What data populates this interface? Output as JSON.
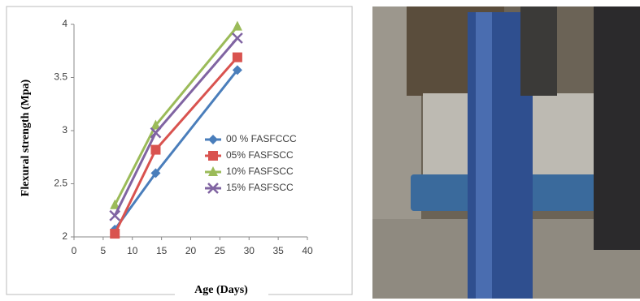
{
  "chart_data": {
    "type": "line",
    "x_label": "Age (Days)",
    "y_label": "Flexural strength (Mpa)",
    "x": [
      7,
      14,
      28
    ],
    "xlim": [
      0,
      40
    ],
    "xticks": [
      0,
      5,
      10,
      15,
      20,
      25,
      30,
      35,
      40
    ],
    "ylim": [
      2,
      4
    ],
    "yticks": [
      2,
      2.5,
      3,
      3.5,
      4
    ],
    "series": [
      {
        "name": "00 % FASFCCC",
        "color": "#4a7ebb",
        "marker": "diamond",
        "values": [
          2.07,
          2.6,
          3.57
        ]
      },
      {
        "name": "05% FASFSCC",
        "color": "#d9534f",
        "marker": "square",
        "values": [
          2.03,
          2.82,
          3.69
        ]
      },
      {
        "name": "10% FASFSCC",
        "color": "#9bbb59",
        "marker": "triangle",
        "values": [
          2.3,
          3.05,
          3.98
        ]
      },
      {
        "name": "15% FASFSCC",
        "color": "#8064a2",
        "marker": "x",
        "values": [
          2.2,
          2.98,
          3.87
        ]
      }
    ]
  }
}
